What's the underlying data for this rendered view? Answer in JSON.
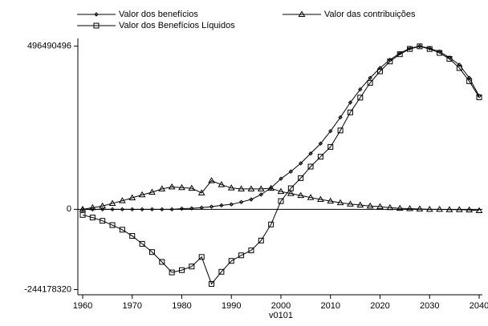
{
  "chart_data": {
    "type": "line",
    "xlabel": "v0101",
    "x": [
      1960,
      1962,
      1964,
      1966,
      1968,
      1970,
      1972,
      1974,
      1976,
      1978,
      1980,
      1982,
      1984,
      1986,
      1988,
      1990,
      1992,
      1994,
      1996,
      1998,
      2000,
      2002,
      2004,
      2006,
      2008,
      2010,
      2012,
      2014,
      2016,
      2018,
      2020,
      2022,
      2024,
      2026,
      2028,
      2030,
      2032,
      2034,
      2036,
      2038,
      2040
    ],
    "xlim": [
      1960,
      2040
    ],
    "xticks": [
      1960,
      1970,
      1980,
      1990,
      2000,
      2010,
      2020,
      2030,
      2040
    ],
    "ylim": [
      -260000000,
      520000000
    ],
    "yticks": [
      -244178320,
      0,
      496490496
    ],
    "series": [
      {
        "name": "Valor dos benefícios",
        "color": "#000000",
        "marker": "diamond",
        "values": [
          0,
          0,
          0,
          0,
          0,
          0,
          0,
          0,
          0,
          0,
          2000000,
          3000000,
          5000000,
          8000000,
          12000000,
          15000000,
          22000000,
          30000000,
          45000000,
          65000000,
          93000000,
          115000000,
          140000000,
          170000000,
          200000000,
          238000000,
          280000000,
          325000000,
          365000000,
          400000000,
          430000000,
          455000000,
          475000000,
          490000000,
          496490496,
          490000000,
          480000000,
          462000000,
          440000000,
          400000000,
          345000000
        ]
      },
      {
        "name": "Valor das contribuições",
        "color": "#000000",
        "marker": "triangle",
        "values": [
          0,
          5000000,
          10000000,
          18000000,
          26000000,
          35000000,
          44000000,
          52000000,
          62000000,
          68000000,
          66000000,
          64000000,
          50000000,
          87000000,
          75000000,
          65000000,
          62000000,
          62000000,
          62000000,
          64000000,
          54000000,
          48000000,
          42000000,
          36000000,
          30000000,
          25000000,
          20000000,
          16000000,
          13000000,
          10000000,
          8000000,
          5000000,
          3000000,
          2000000,
          1000000,
          0,
          0,
          -1000000,
          -1000000,
          -2000000,
          -4000000
        ]
      },
      {
        "name": "Valor dos Benefícios Líquidos",
        "color": "#000000",
        "marker": "square",
        "values": [
          -17000000,
          -25000000,
          -35000000,
          -48000000,
          -62000000,
          -81000000,
          -105000000,
          -130000000,
          -160000000,
          -192000000,
          -185000000,
          -174000000,
          -145000000,
          -227000000,
          -190000000,
          -157000000,
          -140000000,
          -125000000,
          -95000000,
          -46000000,
          25000000,
          64000000,
          95000000,
          130000000,
          160000000,
          190000000,
          240000000,
          295000000,
          340000000,
          385000000,
          420000000,
          450000000,
          472000000,
          488000000,
          496000000,
          488000000,
          476000000,
          458000000,
          430000000,
          390000000,
          341000000
        ]
      }
    ]
  }
}
